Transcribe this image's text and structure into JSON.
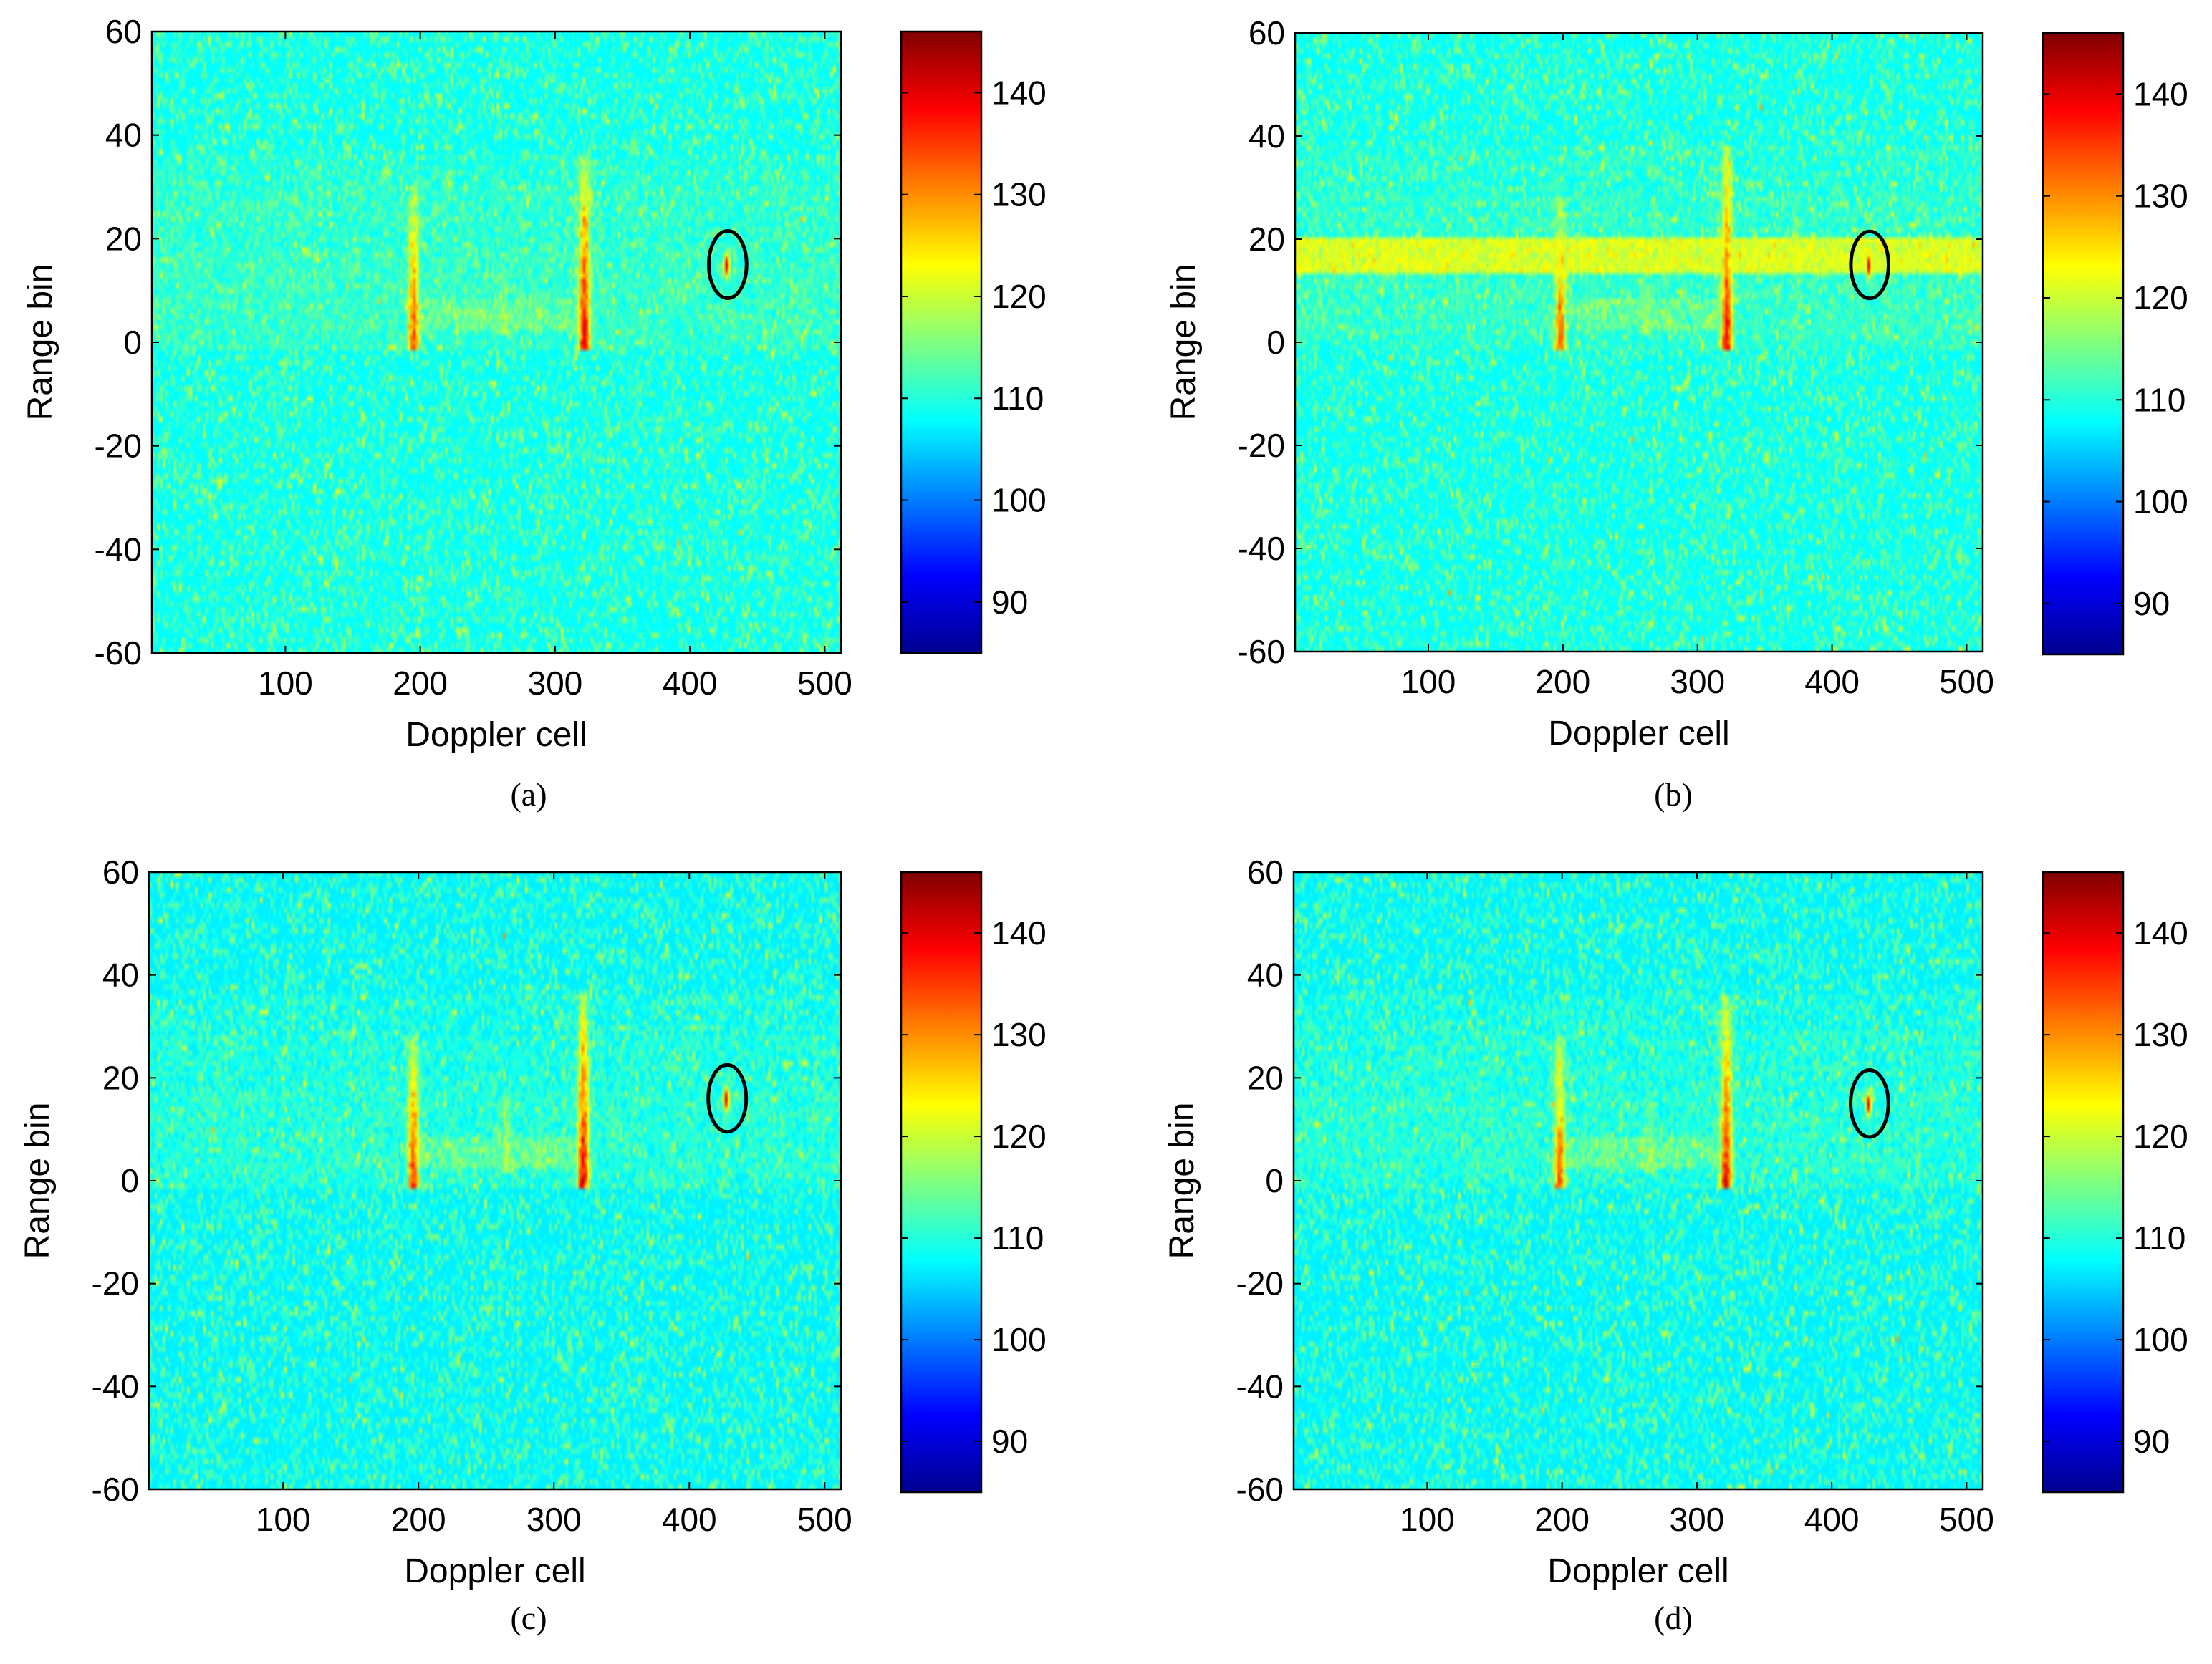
{
  "figure": {
    "colormap": "jet",
    "color_range": [
      85,
      146
    ],
    "colors": {
      "jet_stops": [
        "#00008f",
        "#0000ff",
        "#00ffff",
        "#ffff00",
        "#ff0000",
        "#800000"
      ],
      "frame": "#000000",
      "marker_ellipse": "#000000"
    }
  },
  "chart_data": [
    {
      "type": "heatmap",
      "panel": "a",
      "caption": "(a)",
      "xlabel": "Doppler cell",
      "ylabel": "Range bin",
      "xlim": [
        1,
        512
      ],
      "ylim": [
        -60,
        60
      ],
      "xticks": [
        100,
        200,
        300,
        400,
        500
      ],
      "yticks": [
        60,
        40,
        20,
        0,
        -20,
        -40,
        -60
      ],
      "colorbar_ticks": [
        140,
        130,
        120,
        110,
        100,
        90
      ],
      "background_level": 108,
      "clutter_band": null,
      "ridges": [
        {
          "doppler": 195,
          "range_from": 0,
          "range_to": 30,
          "peak": 134
        },
        {
          "doppler": 322,
          "range_from": 0,
          "range_to": 36,
          "peak": 138
        },
        {
          "doppler": 262,
          "range_from": 3,
          "range_to": 17,
          "peak": 118
        }
      ],
      "target": {
        "doppler": 428,
        "range": 15,
        "peak": 141,
        "circle_rx": 14,
        "circle_ry": 6.5
      }
    },
    {
      "type": "heatmap",
      "panel": "b",
      "caption": "(b)",
      "xlabel": "Doppler cell",
      "ylabel": "Range bin",
      "xlim": [
        1,
        512
      ],
      "ylim": [
        -60,
        60
      ],
      "xticks": [
        100,
        200,
        300,
        400,
        500
      ],
      "yticks": [
        60,
        40,
        20,
        0,
        -20,
        -40,
        -60
      ],
      "colorbar_ticks": [
        140,
        130,
        120,
        110,
        100,
        90
      ],
      "background_level": 108,
      "clutter_band": {
        "range_from": 14,
        "range_to": 20,
        "level": 121
      },
      "ridges": [
        {
          "doppler": 198,
          "range_from": 0,
          "range_to": 28,
          "peak": 133
        },
        {
          "doppler": 322,
          "range_from": 0,
          "range_to": 38,
          "peak": 138
        },
        {
          "doppler": 262,
          "range_from": 3,
          "range_to": 15,
          "peak": 118
        }
      ],
      "target": {
        "doppler": 428,
        "range": 15,
        "peak": 141,
        "circle_rx": 14,
        "circle_ry": 6.5
      }
    },
    {
      "type": "heatmap",
      "panel": "c",
      "caption": "(c)",
      "xlabel": "Doppler cell",
      "ylabel": "Range bin",
      "xlim": [
        1,
        512
      ],
      "ylim": [
        -60,
        60
      ],
      "xticks": [
        100,
        200,
        300,
        400,
        500
      ],
      "yticks": [
        60,
        40,
        20,
        0,
        -20,
        -40,
        -60
      ],
      "colorbar_ticks": [
        140,
        130,
        120,
        110,
        100,
        90
      ],
      "background_level": 107,
      "clutter_band": null,
      "ridges": [
        {
          "doppler": 196,
          "range_from": 0,
          "range_to": 28,
          "peak": 136
        },
        {
          "doppler": 322,
          "range_from": 0,
          "range_to": 36,
          "peak": 140
        },
        {
          "doppler": 265,
          "range_from": 3,
          "range_to": 17,
          "peak": 119
        }
      ],
      "target": {
        "doppler": 428,
        "range": 16,
        "peak": 142,
        "circle_rx": 14,
        "circle_ry": 6.5
      }
    },
    {
      "type": "heatmap",
      "panel": "d",
      "caption": "(d)",
      "xlabel": "Doppler cell",
      "ylabel": "Range bin",
      "xlim": [
        1,
        512
      ],
      "ylim": [
        -60,
        60
      ],
      "xticks": [
        100,
        200,
        300,
        400,
        500
      ],
      "yticks": [
        60,
        40,
        20,
        0,
        -20,
        -40,
        -60
      ],
      "colorbar_ticks": [
        140,
        130,
        120,
        110,
        100,
        90
      ],
      "background_level": 107,
      "clutter_band": null,
      "ridges": [
        {
          "doppler": 198,
          "range_from": 0,
          "range_to": 28,
          "peak": 134
        },
        {
          "doppler": 322,
          "range_from": 0,
          "range_to": 36,
          "peak": 139
        },
        {
          "doppler": 265,
          "range_from": 3,
          "range_to": 17,
          "peak": 118
        }
      ],
      "target": {
        "doppler": 428,
        "range": 15,
        "peak": 140,
        "circle_rx": 14,
        "circle_ry": 6.5
      }
    }
  ]
}
